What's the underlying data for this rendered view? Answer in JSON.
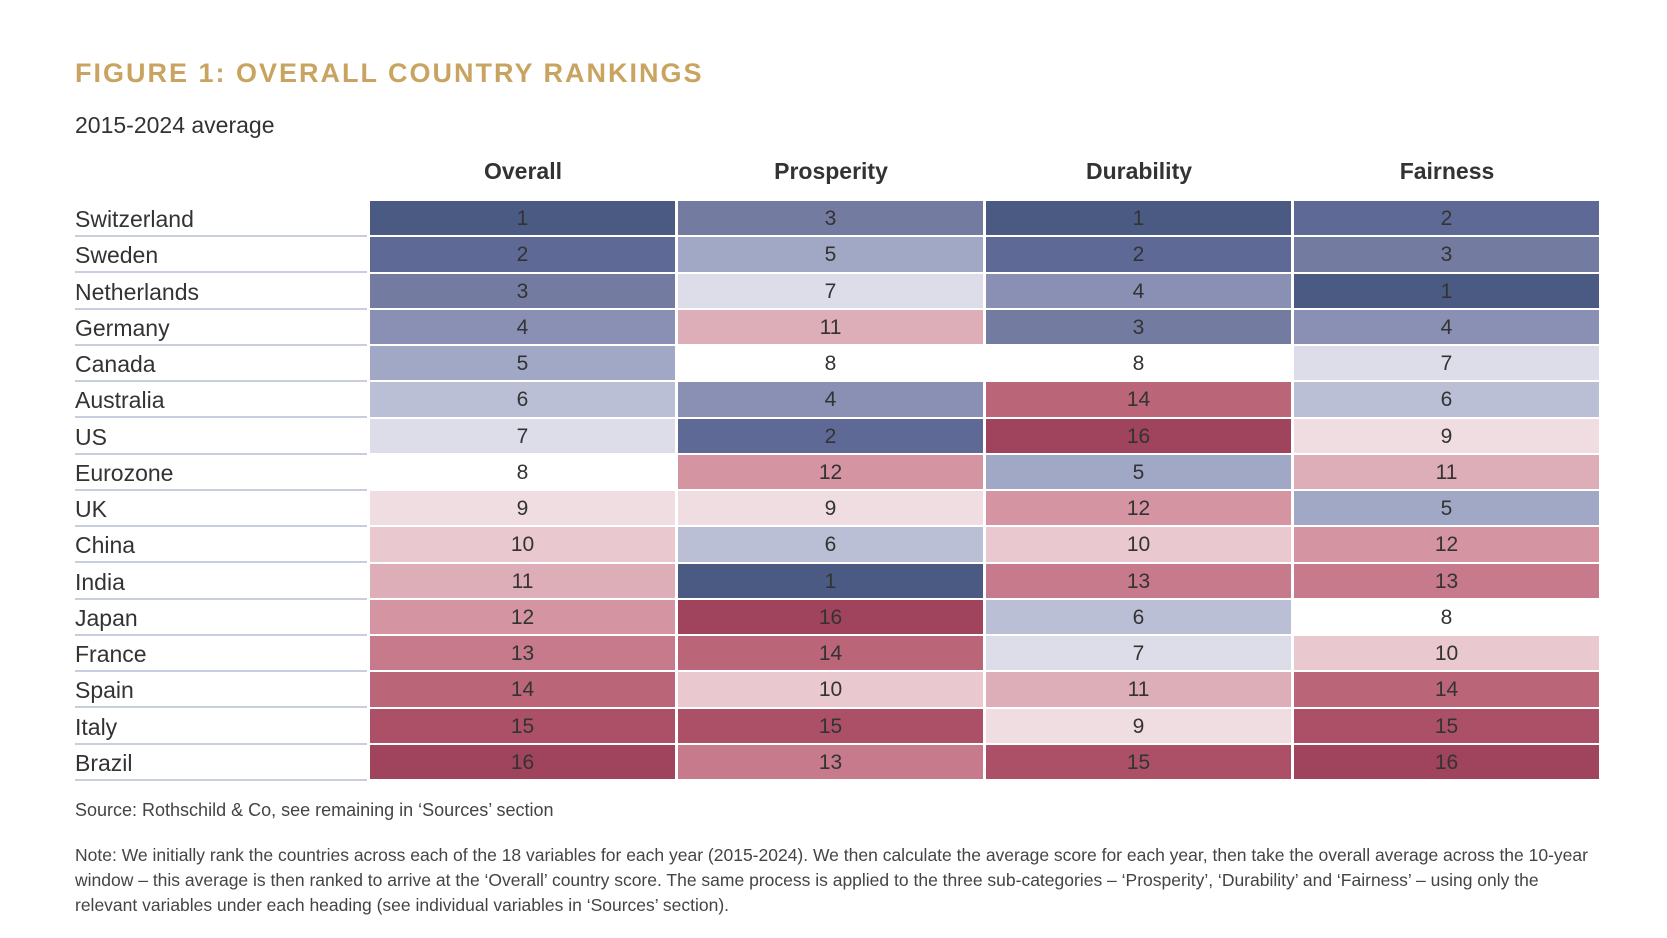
{
  "title": "FIGURE 1: OVERALL COUNTRY RANKINGS",
  "subtitle": "2015-2024 average",
  "source": "Source: Rothschild & Co, see remaining in ‘Sources’ section",
  "note": "Note: We initially rank the countries across each of the 18 variables for each year (2015-2024). We then calculate the average score for each year, then take the overall average across the 10-year window – this average is then ranked to arrive at the ‘Overall’ country score. The same process is applied to the three sub-categories – ‘Prosperity’, ‘Durability’ and ‘Fairness’ – using only the relevant variables under each heading (see individual variables in ‘Sources’ section).",
  "colors": {
    "title": "#c9a460",
    "scale": [
      "#4a5a82",
      "#5e6a95",
      "#737ba0",
      "#8a90b4",
      "#a1a8c6",
      "#bbbfd6",
      "#dcdde9",
      "#ffffff",
      "#f0dde2",
      "#e9c8cf",
      "#deaeb8",
      "#d494a1",
      "#c77a8b",
      "#ba6678",
      "#ac5068",
      "#a0435c"
    ]
  },
  "chart_data": {
    "type": "heatmap",
    "title": "FIGURE 1: OVERALL COUNTRY RANKINGS",
    "subtitle": "2015-2024 average",
    "columns": [
      "Overall",
      "Prosperity",
      "Durability",
      "Fairness"
    ],
    "rows": [
      {
        "country": "Switzerland",
        "values": [
          1,
          3,
          1,
          2
        ]
      },
      {
        "country": "Sweden",
        "values": [
          2,
          5,
          2,
          3
        ]
      },
      {
        "country": "Netherlands",
        "values": [
          3,
          7,
          4,
          1
        ]
      },
      {
        "country": "Germany",
        "values": [
          4,
          11,
          3,
          4
        ]
      },
      {
        "country": "Canada",
        "values": [
          5,
          8,
          8,
          7
        ]
      },
      {
        "country": "Australia",
        "values": [
          6,
          4,
          14,
          6
        ]
      },
      {
        "country": "US",
        "values": [
          7,
          2,
          16,
          9
        ]
      },
      {
        "country": "Eurozone",
        "values": [
          8,
          12,
          5,
          11
        ]
      },
      {
        "country": "UK",
        "values": [
          9,
          9,
          12,
          5
        ]
      },
      {
        "country": "China",
        "values": [
          10,
          6,
          10,
          12
        ]
      },
      {
        "country": "India",
        "values": [
          11,
          1,
          13,
          13
        ]
      },
      {
        "country": "Japan",
        "values": [
          12,
          16,
          6,
          8
        ]
      },
      {
        "country": "France",
        "values": [
          13,
          14,
          7,
          10
        ]
      },
      {
        "country": "Spain",
        "values": [
          14,
          10,
          11,
          14
        ]
      },
      {
        "country": "Italy",
        "values": [
          15,
          15,
          9,
          15
        ]
      },
      {
        "country": "Brazil",
        "values": [
          16,
          13,
          15,
          16
        ]
      }
    ],
    "value_range": [
      1,
      16
    ]
  }
}
